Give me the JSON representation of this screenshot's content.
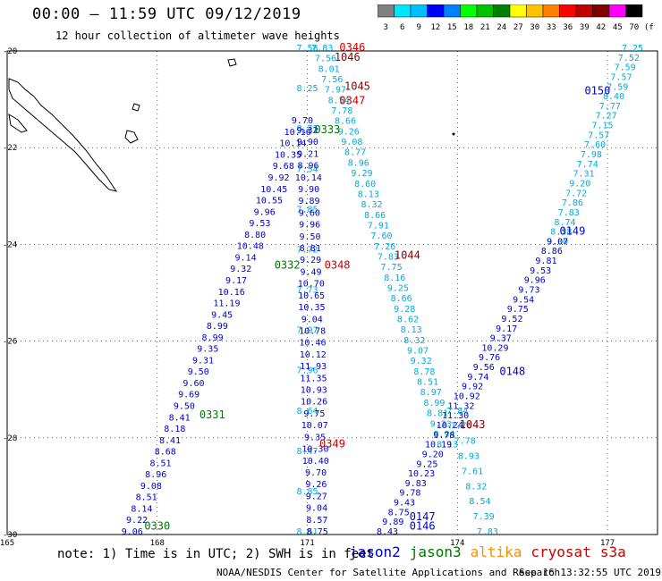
{
  "header": {
    "title": "00:00 – 11:59 UTC 09/12/2019",
    "subtitle": "12 hour collection of altimeter wave heights"
  },
  "colorbar": {
    "labels": [
      "3",
      "6",
      "9",
      "12",
      "15",
      "18",
      "21",
      "24",
      "27",
      "30",
      "33",
      "36",
      "39",
      "42",
      "45",
      "70"
    ],
    "unit": "(ft)",
    "colors": [
      "#808080",
      "#00e5ff",
      "#00bfff",
      "#0000ff",
      "#0080ff",
      "#00ff00",
      "#00c000",
      "#008000",
      "#ffff00",
      "#ffc000",
      "#ff8000",
      "#ff0000",
      "#c00000",
      "#800000",
      "#ff00ff",
      "#000000"
    ]
  },
  "chart_data": {
    "type": "scatter",
    "xlim": [
      165,
      178
    ],
    "ylim": [
      -30,
      -20
    ],
    "x_ticks": [
      "165",
      "168",
      "171",
      "174",
      "177"
    ],
    "y_ticks": [
      "-20",
      "-22",
      "-24",
      "-26",
      "-28",
      "-30"
    ],
    "series": [
      {
        "name": "jason2",
        "color": "#0000cc"
      },
      {
        "name": "jason3",
        "color": "#007700"
      },
      {
        "name": "altika",
        "color": "#ff8c00"
      },
      {
        "name": "cryosat",
        "color": "#cc0000"
      },
      {
        "name": "s3a",
        "color": "#cc0000"
      }
    ],
    "pass_labels": [
      {
        "text": "0346",
        "lon": 171.9,
        "lat": -20.0,
        "color": "#cc0000"
      },
      {
        "text": "1046",
        "lon": 171.8,
        "lat": -20.2,
        "color": "#880000"
      },
      {
        "text": "1045",
        "lon": 172.0,
        "lat": -20.8,
        "color": "#880000"
      },
      {
        "text": "0347",
        "lon": 171.9,
        "lat": -21.1,
        "color": "#cc0000"
      },
      {
        "text": "0150",
        "lon": 176.8,
        "lat": -20.9,
        "color": "#0000cc"
      },
      {
        "text": "0333",
        "lon": 171.4,
        "lat": -21.7,
        "color": "#007700"
      },
      {
        "text": "0149",
        "lon": 176.3,
        "lat": -23.8,
        "color": "#0000cc"
      },
      {
        "text": "1044",
        "lon": 173.0,
        "lat": -24.3,
        "color": "#880000"
      },
      {
        "text": "0332",
        "lon": 170.6,
        "lat": -24.5,
        "color": "#007700"
      },
      {
        "text": "0348",
        "lon": 171.6,
        "lat": -24.5,
        "color": "#cc0000"
      },
      {
        "text": "0148",
        "lon": 175.1,
        "lat": -26.7,
        "color": "#0000cc"
      },
      {
        "text": "0331",
        "lon": 169.1,
        "lat": -27.6,
        "color": "#007700"
      },
      {
        "text": "1043",
        "lon": 174.3,
        "lat": -27.8,
        "color": "#880000"
      },
      {
        "text": "0349",
        "lon": 171.5,
        "lat": -28.2,
        "color": "#cc0000"
      },
      {
        "text": "0147",
        "lon": 173.3,
        "lat": -29.7,
        "color": "#0000cc"
      },
      {
        "text": "0330",
        "lon": 168.0,
        "lat": -29.9,
        "color": "#007700"
      },
      {
        "text": "0146",
        "lon": 173.3,
        "lat": -29.9,
        "color": "#0000cc"
      }
    ],
    "tracks": [
      {
        "color": "#00aadd",
        "lon_start": 171.3,
        "lat_start": -20.0,
        "lon_end": 173.8,
        "lat_end": -28.2,
        "values": [
          "7.83",
          "7.56",
          "8.01",
          "7.56",
          "7.97",
          "8.54",
          "7.78",
          "8.66",
          "9.26",
          "9.08",
          "8.77",
          "8.96",
          "9.29",
          "8.60",
          "8.13",
          "8.32",
          "8.66",
          "7.91",
          "7.60",
          "7.26",
          "7.83",
          "7.75",
          "8.16",
          "9.25",
          "8.66",
          "9.28",
          "8.62",
          "8.13",
          "8.32",
          "9.07",
          "9.32",
          "8.78",
          "8.51",
          "8.97",
          "8.99",
          "8.81",
          "9.23",
          "8.94",
          "8.13"
        ]
      },
      {
        "color": "#00aadd",
        "lon_start": 171.0,
        "lat_start": -20.0,
        "lon_end": 171.0,
        "lat_end": -30.0,
        "values": [
          "7.58",
          "8.25",
          "8.71",
          "7.54",
          "7.85",
          "7.72",
          "7.73",
          "7.97",
          "7.96",
          "8.64",
          "8.47",
          "8.85",
          "8.61"
        ]
      },
      {
        "color": "#0000cc",
        "lon_start": 171.0,
        "lat_start": -21.7,
        "lon_end": 171.2,
        "lat_end": -30.0,
        "values": [
          "9.32",
          "9.90",
          "9.21",
          "8.96",
          "10.14",
          "9.90",
          "9.89",
          "9.60",
          "9.96",
          "9.50",
          "8.81",
          "9.29",
          "9.49",
          "10.70",
          "10.65",
          "10.35",
          "9.04",
          "10.78",
          "10.46",
          "10.12",
          "11.93",
          "11.35",
          "10.93",
          "10.26",
          "9.75",
          "10.07",
          "9.35",
          "10.30",
          "10.40",
          "9.70",
          "9.26",
          "9.27",
          "9.04",
          "8.57",
          "8.75"
        ]
      },
      {
        "color": "#0000cc",
        "lon_start": 170.9,
        "lat_start": -21.5,
        "lon_end": 167.5,
        "lat_end": -30.0,
        "values": [
          "9.70",
          "10.16",
          "10.14",
          "10.35",
          "9.68",
          "9.92",
          "10.45",
          "10.55",
          "9.96",
          "9.53",
          "8.80",
          "10.48",
          "9.14",
          "9.32",
          "9.17",
          "10.16",
          "11.19",
          "9.45",
          "8.99",
          "8.99",
          "9.35",
          "9.31",
          "9.50",
          "9.60",
          "9.69",
          "9.50",
          "8.41",
          "8.18",
          "8.41",
          "8.68",
          "8.51",
          "8.96",
          "9.08",
          "8.51",
          "8.14",
          "9.22",
          "9.06"
        ]
      },
      {
        "color": "#00aadd",
        "lon_start": 177.5,
        "lat_start": -20.0,
        "lon_end": 176.0,
        "lat_end": -24.0,
        "values": [
          "7.25",
          "7.52",
          "7.59",
          "7.57",
          "7.59",
          "8.40",
          "7.77",
          "7.27",
          "7.15",
          "7.57",
          "7.60",
          "7.98",
          "7.74",
          "7.31",
          "9.20",
          "7.72",
          "7.86",
          "7.83",
          "8.74",
          "8.38",
          "9.00"
        ]
      },
      {
        "color": "#0000cc",
        "lon_start": 176.0,
        "lat_start": -24.0,
        "lon_end": 172.6,
        "lat_end": -30.0,
        "values": [
          "9.07",
          "8.86",
          "9.81",
          "9.53",
          "9.96",
          "9.73",
          "9.54",
          "9.75",
          "9.52",
          "9.17",
          "9.37",
          "10.29",
          "9.76",
          "9.56",
          "9.74",
          "9.92",
          "10.92",
          "11.32",
          "11.30",
          "10.24",
          "9.78",
          "10.19",
          "9.20",
          "9.25",
          "10.23",
          "9.83",
          "9.78",
          "9.43",
          "8.75",
          "9.89",
          "8.43"
        ]
      },
      {
        "color": "#00aadd",
        "lon_start": 174.0,
        "lat_start": -27.5,
        "lon_end": 174.6,
        "lat_end": -30.0,
        "values": [
          "7.84",
          "7.76",
          "7.78",
          "8.93",
          "7.61",
          "8.32",
          "8.54",
          "7.39",
          "7.83"
        ]
      }
    ]
  },
  "footer": {
    "note": "note: 1) Time is in UTC; 2) SWH is in feet",
    "legend": [
      {
        "label": "jason2",
        "color": "#0000cc"
      },
      {
        "label": "jason3",
        "color": "#007700"
      },
      {
        "label": "altika",
        "color": "#ff8c00"
      },
      {
        "label": "cryosat",
        "color": "#cc0000"
      },
      {
        "label": "s3a",
        "color": "#cc0000"
      }
    ],
    "credit": "NOAA/NESDIS Center for Satellite Applications and Research",
    "timestamp": "Sep 16 13:32:55 UTC 2019"
  }
}
